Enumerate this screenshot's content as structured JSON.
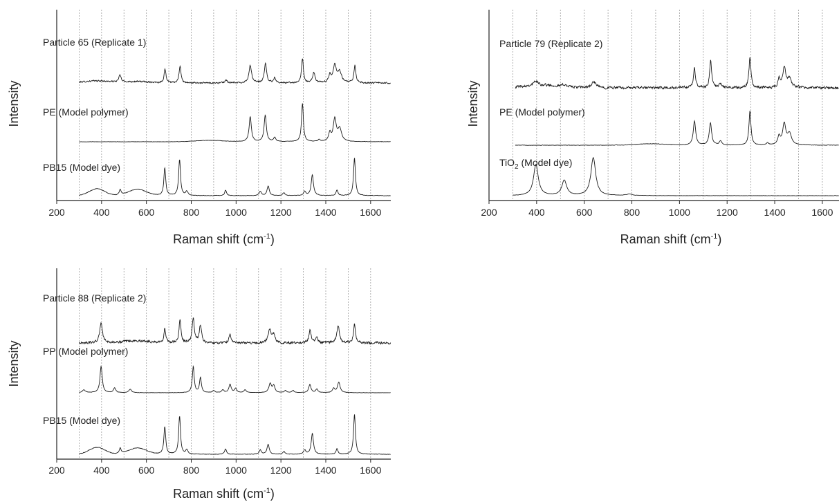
{
  "chart_data": [
    {
      "type": "line",
      "xlabel": "Raman shift (cm⁻¹)",
      "ylabel": "Intensity",
      "xlim": [
        200,
        1690
      ],
      "xticks": [
        200,
        400,
        600,
        800,
        1000,
        1200,
        1400,
        1600
      ],
      "gridlines": [
        300,
        400,
        500,
        600,
        700,
        800,
        900,
        1000,
        1100,
        1200,
        1300,
        1400,
        1500,
        1600
      ],
      "series": [
        {
          "name": "Particle 65 (Replicate 1)",
          "range": [
            300,
            1690
          ],
          "noise": 0.9,
          "peaks": [
            [
              482,
              6,
              10
            ],
            [
              683,
              5,
              20
            ],
            [
              750,
              5,
              25
            ],
            [
              955,
              6,
              4
            ],
            [
              1063,
              7,
              25
            ],
            [
              1131,
              6,
              28
            ],
            [
              1172,
              6,
              7
            ],
            [
              1296,
              5,
              35
            ],
            [
              1347,
              6,
              15
            ],
            [
              1418,
              6,
              10
            ],
            [
              1440,
              9,
              25
            ],
            [
              1462,
              10,
              15
            ],
            [
              1530,
              5,
              25
            ]
          ],
          "base": [
            [
              380,
              60,
              3
            ],
            [
              560,
              60,
              2
            ]
          ]
        },
        {
          "name": "PE (Model polymer)",
          "range": [
            300,
            1690
          ],
          "noise": 0.2,
          "peaks": [
            [
              1063,
              6,
              36
            ],
            [
              1130,
              6,
              38
            ],
            [
              1172,
              6,
              6
            ],
            [
              1296,
              5,
              55
            ],
            [
              1370,
              5,
              3
            ],
            [
              1418,
              6,
              12
            ],
            [
              1440,
              8,
              32
            ],
            [
              1462,
              10,
              18
            ]
          ],
          "base": [
            [
              880,
              60,
              2
            ]
          ]
        },
        {
          "name": "PB15 (Model dye)",
          "range": [
            300,
            1690
          ],
          "noise": 0.3,
          "peaks": [
            [
              483,
              5,
              8
            ],
            [
              682,
              5,
              40
            ],
            [
              748,
              5,
              52
            ],
            [
              780,
              6,
              6
            ],
            [
              953,
              5,
              8
            ],
            [
              1108,
              6,
              6
            ],
            [
              1143,
              6,
              14
            ],
            [
              1213,
              6,
              4
            ],
            [
              1306,
              6,
              6
            ],
            [
              1340,
              6,
              30
            ],
            [
              1450,
              5,
              8
            ],
            [
              1528,
              5,
              55
            ]
          ],
          "base": [
            [
              380,
              35,
              10
            ],
            [
              560,
              40,
              9
            ]
          ]
        }
      ]
    },
    {
      "type": "line",
      "xlabel": "Raman shift (cm⁻¹)",
      "ylabel": "Intensity",
      "xlim": [
        200,
        1670
      ],
      "xticks": [
        200,
        400,
        600,
        800,
        1000,
        1200,
        1400,
        1600
      ],
      "gridlines": [
        300,
        400,
        500,
        600,
        700,
        800,
        900,
        1000,
        1100,
        1200,
        1300,
        1400,
        1500,
        1600
      ],
      "series": [
        {
          "name": "Particle 79 (Replicate 2)",
          "range": [
            310,
            1670
          ],
          "noise": 1.6,
          "peaks": [
            [
              397,
              10,
              6
            ],
            [
              518,
              10,
              3
            ],
            [
              640,
              12,
              8
            ],
            [
              1063,
              5,
              28
            ],
            [
              1131,
              5,
              40
            ],
            [
              1172,
              6,
              6
            ],
            [
              1296,
              5,
              45
            ],
            [
              1418,
              5,
              12
            ],
            [
              1440,
              8,
              28
            ],
            [
              1462,
              10,
              12
            ]
          ],
          "base": [
            [
              420,
              80,
              4
            ]
          ]
        },
        {
          "name": "PE (Model polymer)",
          "range": [
            310,
            1670
          ],
          "noise": 0.25,
          "peaks": [
            [
              1063,
              6,
              35
            ],
            [
              1130,
              6,
              32
            ],
            [
              1172,
              6,
              6
            ],
            [
              1296,
              5,
              50
            ],
            [
              1370,
              5,
              3
            ],
            [
              1418,
              6,
              12
            ],
            [
              1440,
              8,
              30
            ],
            [
              1462,
              10,
              16
            ]
          ],
          "base": [
            [
              880,
              60,
              2
            ]
          ]
        },
        {
          "name": "TiO",
          "name_sub": "2",
          "name_rest": " (Model dye)",
          "range": [
            300,
            1670
          ],
          "noise": 0.2,
          "peaks": [
            [
              397,
              12,
              45
            ],
            [
              516,
              12,
              22
            ],
            [
              638,
              12,
              55
            ],
            [
              790,
              15,
              2
            ]
          ],
          "base": []
        }
      ]
    },
    {
      "type": "line",
      "xlabel": "Raman shift (cm⁻¹)",
      "ylabel": "Intensity",
      "xlim": [
        200,
        1690
      ],
      "xticks": [
        200,
        400,
        600,
        800,
        1000,
        1200,
        1400,
        1600
      ],
      "gridlines": [
        300,
        400,
        500,
        600,
        700,
        800,
        900,
        1000,
        1100,
        1200,
        1300,
        1400,
        1500,
        1600
      ],
      "series": [
        {
          "name": "Particle 88 (Replicate 2)",
          "range": [
            300,
            1690
          ],
          "noise": 1.4,
          "peaks": [
            [
              398,
              7,
              30
            ],
            [
              682,
              5,
              20
            ],
            [
              750,
              5,
              35
            ],
            [
              809,
              6,
              35
            ],
            [
              841,
              6,
              25
            ],
            [
              973,
              6,
              12
            ],
            [
              1150,
              7,
              20
            ],
            [
              1168,
              7,
              12
            ],
            [
              1330,
              6,
              18
            ],
            [
              1360,
              6,
              8
            ],
            [
              1455,
              7,
              25
            ],
            [
              1528,
              5,
              28
            ]
          ],
          "base": [
            [
              560,
              60,
              3
            ]
          ]
        },
        {
          "name": "PP (Model polymer)",
          "range": [
            300,
            1690
          ],
          "noise": 0.2,
          "peaks": [
            [
              321,
              8,
              4
            ],
            [
              398,
              6,
              38
            ],
            [
              458,
              6,
              7
            ],
            [
              528,
              7,
              5
            ],
            [
              809,
              5,
              38
            ],
            [
              841,
              5,
              22
            ],
            [
              900,
              6,
              3
            ],
            [
              941,
              6,
              4
            ],
            [
              973,
              6,
              12
            ],
            [
              998,
              6,
              6
            ],
            [
              1040,
              6,
              4
            ],
            [
              1152,
              7,
              13
            ],
            [
              1168,
              6,
              10
            ],
            [
              1220,
              6,
              3
            ],
            [
              1254,
              6,
              3
            ],
            [
              1329,
              6,
              12
            ],
            [
              1360,
              6,
              5
            ],
            [
              1435,
              6,
              6
            ],
            [
              1458,
              7,
              15
            ]
          ],
          "base": []
        },
        {
          "name": "PB15 (Model dye)",
          "range": [
            300,
            1690
          ],
          "noise": 0.3,
          "peaks": [
            [
              483,
              5,
              8
            ],
            [
              682,
              5,
              40
            ],
            [
              748,
              5,
              55
            ],
            [
              780,
              6,
              6
            ],
            [
              953,
              5,
              8
            ],
            [
              1108,
              6,
              6
            ],
            [
              1143,
              6,
              14
            ],
            [
              1213,
              6,
              4
            ],
            [
              1306,
              6,
              6
            ],
            [
              1340,
              6,
              30
            ],
            [
              1450,
              5,
              8
            ],
            [
              1528,
              5,
              58
            ]
          ],
          "base": [
            [
              380,
              35,
              10
            ],
            [
              560,
              40,
              9
            ]
          ]
        }
      ]
    }
  ],
  "xlabel_main": "Raman shift (cm",
  "xlabel_sup": "-1",
  "xlabel_close": ")"
}
